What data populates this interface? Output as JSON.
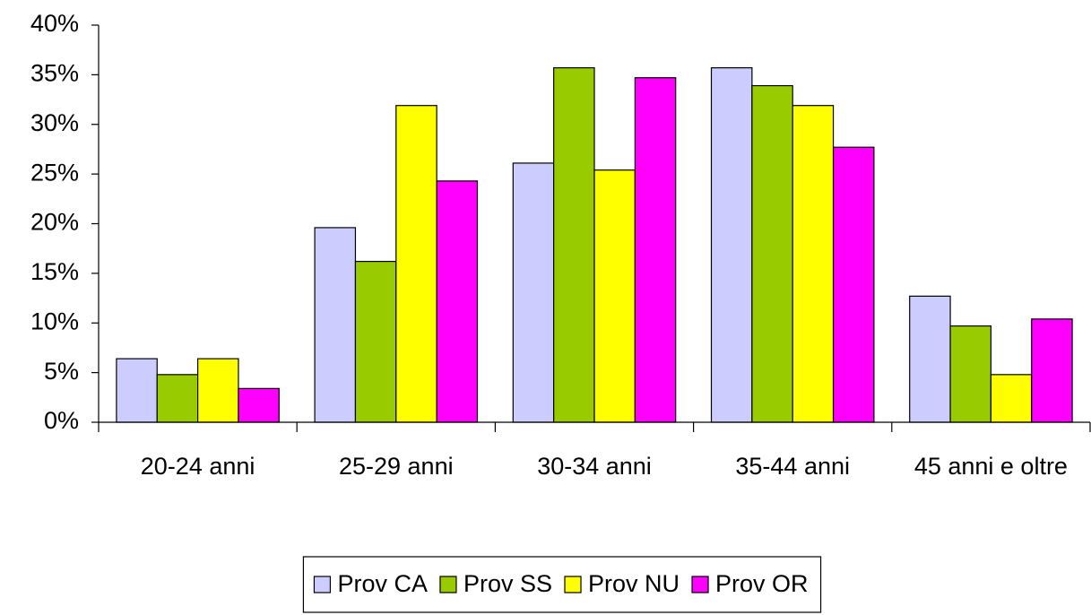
{
  "chart_data": {
    "type": "bar",
    "categories": [
      "20-24 anni",
      "25-29 anni",
      "30-34 anni",
      "35-44 anni",
      "45 anni e oltre"
    ],
    "series": [
      {
        "name": "Prov CA",
        "color": "#ccccff",
        "values": [
          6.4,
          19.6,
          26.1,
          35.7,
          12.7
        ]
      },
      {
        "name": "Prov SS",
        "color": "#99cc00",
        "values": [
          4.8,
          16.2,
          35.7,
          33.9,
          9.7
        ]
      },
      {
        "name": "Prov NU",
        "color": "#ffff00",
        "values": [
          6.4,
          31.9,
          25.4,
          31.9,
          4.8
        ]
      },
      {
        "name": "Prov OR",
        "color": "#ff00ff",
        "values": [
          3.4,
          24.3,
          34.7,
          27.7,
          10.4
        ]
      }
    ],
    "ylim": [
      0,
      40
    ],
    "yticks": [
      {
        "value": 0,
        "label": "0%"
      },
      {
        "value": 5,
        "label": "5%"
      },
      {
        "value": 10,
        "label": "10%"
      },
      {
        "value": 15,
        "label": "15%"
      },
      {
        "value": 20,
        "label": "20%"
      },
      {
        "value": 25,
        "label": "25%"
      },
      {
        "value": 30,
        "label": "30%"
      },
      {
        "value": 35,
        "label": "35%"
      },
      {
        "value": 40,
        "label": "40%"
      }
    ],
    "grid": false,
    "legend": "bottom"
  }
}
